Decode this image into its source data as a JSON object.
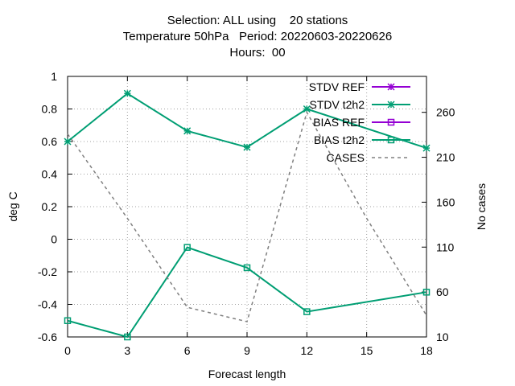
{
  "title_lines": [
    "Selection: ALL using    20 stations",
    "Temperature 50hPa   Period: 20220603-20220626",
    "Hours:  00"
  ],
  "chart_data": {
    "type": "line",
    "xlabel": "Forecast length",
    "ylabel": "deg C",
    "y2label": "No cases",
    "xlim": [
      0,
      18
    ],
    "ylim": [
      -0.6,
      1
    ],
    "y2lim": [
      10,
      300
    ],
    "xticks": [
      0,
      3,
      6,
      9,
      12,
      15,
      18
    ],
    "yticks": [
      -0.6,
      -0.4,
      -0.2,
      0,
      0.2,
      0.4,
      0.6,
      0.8,
      1
    ],
    "ytick_labels": [
      "-0.6",
      "-0.4",
      "-0.2",
      "0",
      "0.2",
      "0.4",
      "0.6",
      "0.8",
      "1"
    ],
    "y2ticks": [
      10,
      60,
      110,
      160,
      210,
      260
    ],
    "grid": true,
    "legend_position": "top-right",
    "series": [
      {
        "name": "STDV REF",
        "axis": "y",
        "color": "#9400d3",
        "marker": "star",
        "dash": false,
        "x": [],
        "values": []
      },
      {
        "name": "STDV t2h2",
        "axis": "y",
        "color": "#009e73",
        "marker": "star",
        "dash": false,
        "x": [
          0,
          3,
          6,
          9,
          12,
          18
        ],
        "values": [
          0.6,
          0.895,
          0.665,
          0.565,
          0.8,
          0.56
        ]
      },
      {
        "name": "BIAS REF",
        "axis": "y",
        "color": "#9400d3",
        "marker": "square",
        "dash": false,
        "x": [],
        "values": []
      },
      {
        "name": "BIAS t2h2",
        "axis": "y",
        "color": "#009e73",
        "marker": "square",
        "dash": false,
        "x": [
          0,
          3,
          6,
          9,
          12,
          18
        ],
        "values": [
          -0.5,
          -0.6,
          -0.05,
          -0.175,
          -0.445,
          -0.325
        ]
      },
      {
        "name": "CASES",
        "axis": "y2",
        "color": "#808080",
        "marker": "none",
        "dash": true,
        "x": [
          0,
          3,
          6,
          9,
          12,
          15,
          18
        ],
        "values": [
          236,
          142,
          43,
          27,
          260,
          142,
          34
        ]
      }
    ]
  }
}
